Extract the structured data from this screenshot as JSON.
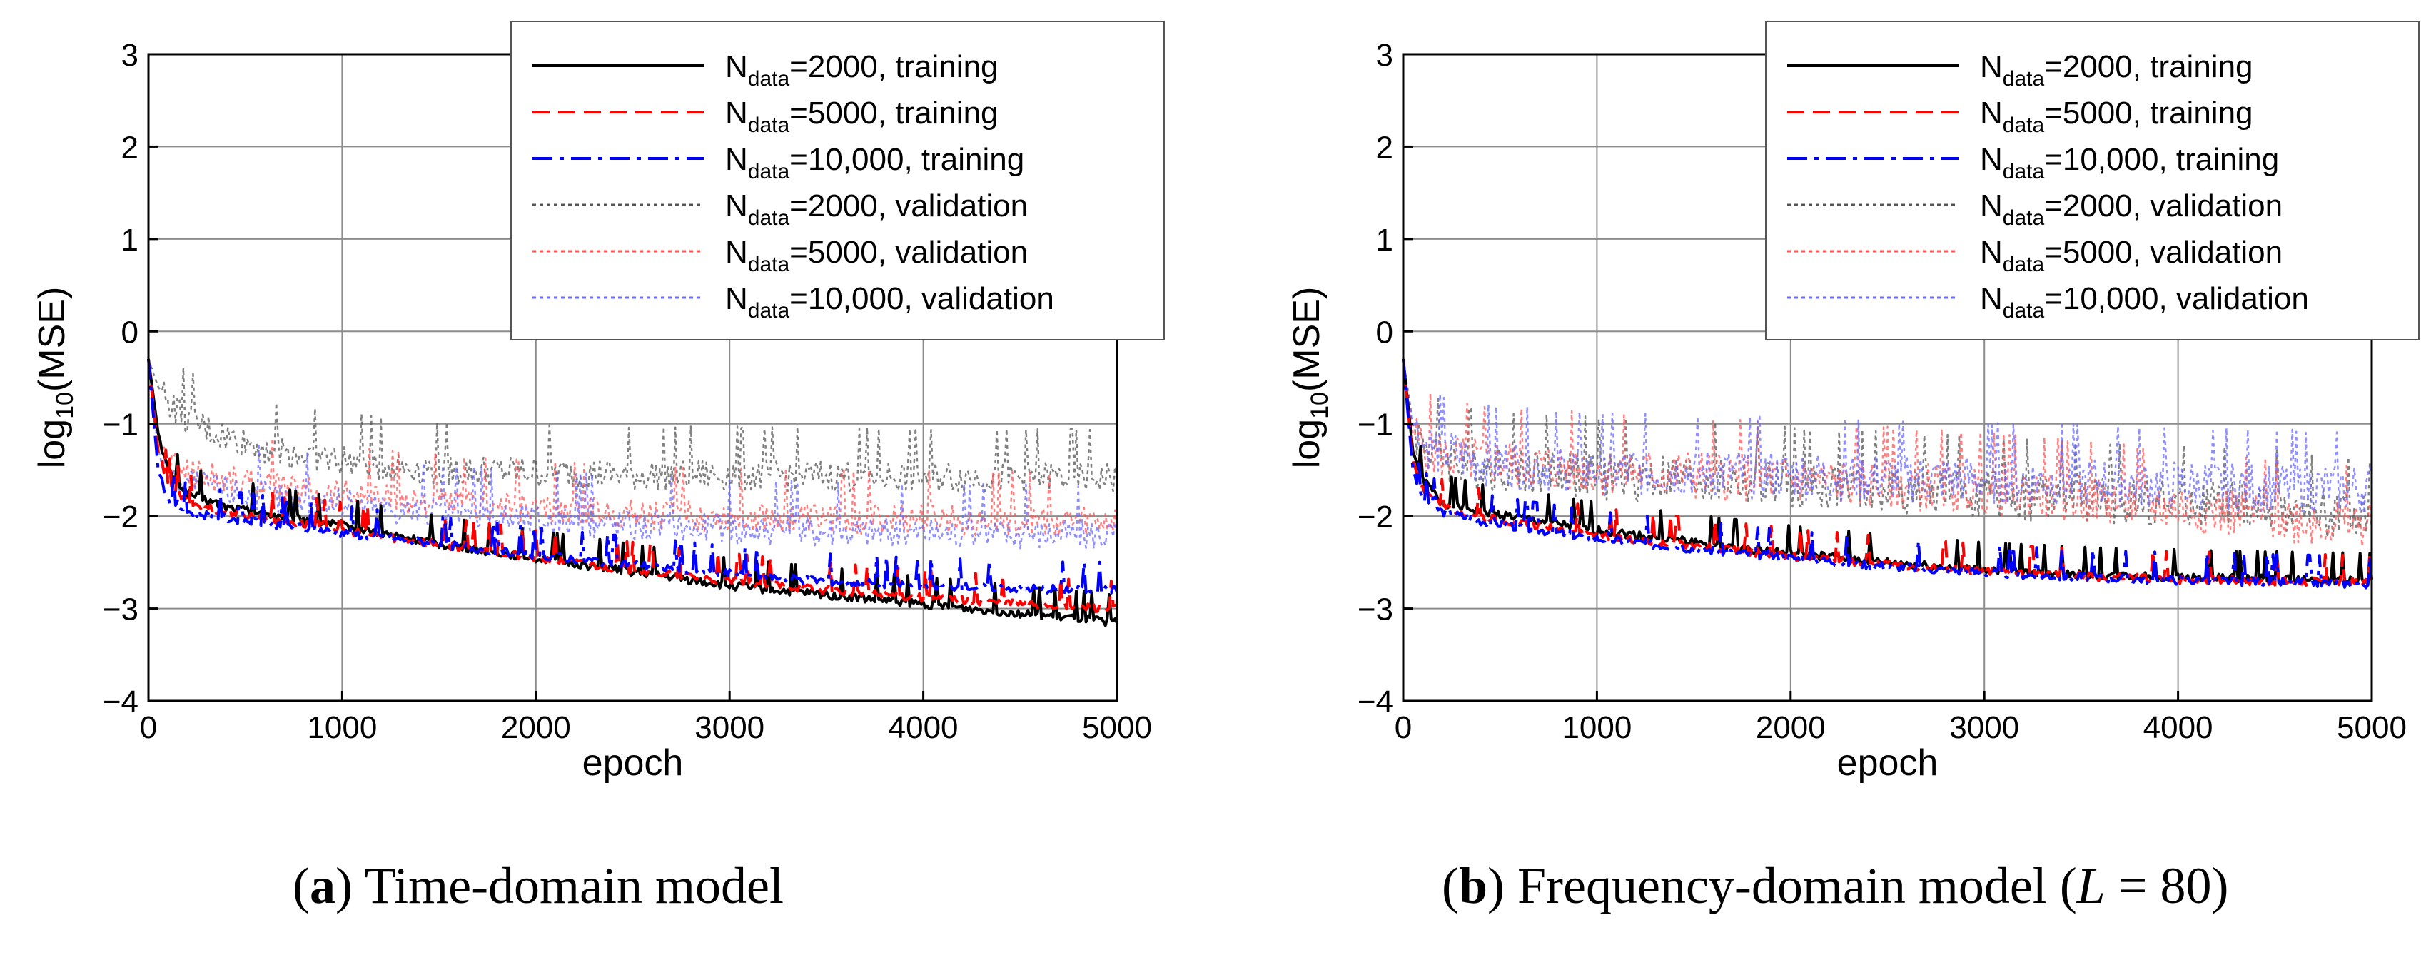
{
  "chart_data": [
    {
      "type": "line",
      "panel": "a",
      "caption": {
        "letter": "a",
        "text": " Time-domain model"
      },
      "xlabel": "epoch",
      "ylabel": {
        "prefix": "log",
        "sub": "10",
        "suffix": "(MSE)"
      },
      "xlim": [
        0,
        5000
      ],
      "ylim": [
        -4,
        3
      ],
      "xticks": [
        0,
        1000,
        2000,
        3000,
        4000,
        5000
      ],
      "yticks": [
        -4,
        -3,
        -2,
        -1,
        0,
        1,
        2,
        3
      ],
      "ytick_labels": [
        "−4",
        "−3",
        "−2",
        "−1",
        "0",
        "1",
        "2",
        "3"
      ],
      "grid": true,
      "legend_position": "top-right",
      "series": [
        {
          "name": "Ndata=2000, training",
          "n": "2000",
          "set": "training",
          "color": "#000000",
          "style": "solid",
          "x": [
            0,
            50,
            100,
            200,
            400,
            700,
            1000,
            1500,
            2000,
            2500,
            3000,
            3500,
            4000,
            4500,
            5000
          ],
          "y": [
            -0.3,
            -1.1,
            -1.5,
            -1.75,
            -1.9,
            -2.0,
            -2.1,
            -2.3,
            -2.45,
            -2.6,
            -2.75,
            -2.85,
            -2.95,
            -3.05,
            -3.15
          ]
        },
        {
          "name": "Ndata=5000, training",
          "n": "5000",
          "set": "training",
          "color": "#ff0000",
          "style": "dashed",
          "x": [
            0,
            50,
            100,
            200,
            400,
            700,
            1000,
            1500,
            2000,
            2500,
            3000,
            3500,
            4000,
            4500,
            5000
          ],
          "y": [
            -0.3,
            -1.3,
            -1.65,
            -1.85,
            -1.95,
            -2.05,
            -2.15,
            -2.3,
            -2.45,
            -2.58,
            -2.7,
            -2.8,
            -2.88,
            -2.95,
            -3.0
          ]
        },
        {
          "name": "Ndata=10,000, training",
          "n": "10,000",
          "set": "training",
          "color": "#0000ff",
          "style": "dashdot",
          "x": [
            0,
            50,
            100,
            200,
            400,
            700,
            1000,
            1500,
            2000,
            2500,
            3000,
            3500,
            4000,
            4500,
            5000
          ],
          "y": [
            -0.3,
            -1.5,
            -1.8,
            -1.95,
            -2.02,
            -2.1,
            -2.18,
            -2.3,
            -2.42,
            -2.52,
            -2.62,
            -2.7,
            -2.75,
            -2.78,
            -2.8
          ]
        },
        {
          "name": "Ndata=2000, validation",
          "n": "2000",
          "set": "validation",
          "color": "#555555",
          "style": "dotted",
          "x": [
            0,
            50,
            100,
            200,
            400,
            700,
            1000,
            1500,
            2000,
            2500,
            3000,
            3500,
            4000,
            4500,
            5000
          ],
          "y": [
            -0.3,
            -0.6,
            -0.75,
            -0.95,
            -1.15,
            -1.3,
            -1.4,
            -1.5,
            -1.52,
            -1.55,
            -1.55,
            -1.56,
            -1.57,
            -1.57,
            -1.58
          ]
        },
        {
          "name": "Ndata=5000, validation",
          "n": "5000",
          "set": "validation",
          "color": "#ff5555",
          "style": "dotted",
          "x": [
            0,
            50,
            100,
            200,
            400,
            700,
            1000,
            1500,
            2000,
            2500,
            3000,
            3500,
            4000,
            4500,
            5000
          ],
          "y": [
            -0.3,
            -1.2,
            -1.4,
            -1.5,
            -1.6,
            -1.7,
            -1.75,
            -1.85,
            -1.92,
            -1.97,
            -2.0,
            -2.02,
            -2.03,
            -2.04,
            -2.05
          ]
        },
        {
          "name": "Ndata=10,000, validation",
          "n": "10,000",
          "set": "validation",
          "color": "#6a6aff",
          "style": "dotted",
          "x": [
            0,
            50,
            100,
            200,
            400,
            700,
            1000,
            1500,
            2000,
            2500,
            3000,
            3500,
            4000,
            4500,
            5000
          ],
          "y": [
            -0.3,
            -1.3,
            -1.5,
            -1.6,
            -1.7,
            -1.8,
            -1.85,
            -1.95,
            -2.02,
            -2.08,
            -2.12,
            -2.15,
            -2.17,
            -2.18,
            -2.18
          ]
        }
      ]
    },
    {
      "type": "line",
      "panel": "b",
      "caption": {
        "letter": "b",
        "text": " Frequency-domain model (",
        "italic": "L",
        "eq": " = 80)"
      },
      "xlabel": "epoch",
      "ylabel": {
        "prefix": "log",
        "sub": "10",
        "suffix": "(MSE)"
      },
      "xlim": [
        0,
        5000
      ],
      "ylim": [
        -4,
        3
      ],
      "xticks": [
        0,
        1000,
        2000,
        3000,
        4000,
        5000
      ],
      "yticks": [
        -4,
        -3,
        -2,
        -1,
        0,
        1,
        2,
        3
      ],
      "ytick_labels": [
        "−4",
        "−3",
        "−2",
        "−1",
        "0",
        "1",
        "2",
        "3"
      ],
      "grid": true,
      "legend_position": "top-right",
      "series": [
        {
          "name": "Ndata=2000, training",
          "n": "2000",
          "set": "training",
          "color": "#000000",
          "style": "solid",
          "x": [
            0,
            50,
            100,
            200,
            400,
            700,
            1000,
            1500,
            2000,
            2500,
            3000,
            3500,
            4000,
            4500,
            5000
          ],
          "y": [
            -0.3,
            -1.3,
            -1.6,
            -1.85,
            -1.95,
            -2.05,
            -2.15,
            -2.28,
            -2.4,
            -2.5,
            -2.58,
            -2.63,
            -2.66,
            -2.68,
            -2.7
          ]
        },
        {
          "name": "Ndata=5000, training",
          "n": "5000",
          "set": "training",
          "color": "#ff0000",
          "style": "dashed",
          "x": [
            0,
            50,
            100,
            200,
            400,
            700,
            1000,
            1500,
            2000,
            2500,
            3000,
            3500,
            4000,
            4500,
            5000
          ],
          "y": [
            -0.3,
            -1.4,
            -1.7,
            -1.9,
            -2.0,
            -2.1,
            -2.2,
            -2.32,
            -2.43,
            -2.52,
            -2.6,
            -2.65,
            -2.68,
            -2.7,
            -2.72
          ]
        },
        {
          "name": "Ndata=10,000, training",
          "n": "10,000",
          "set": "training",
          "color": "#0000ff",
          "style": "dashdot",
          "x": [
            0,
            50,
            100,
            200,
            400,
            700,
            1000,
            1500,
            2000,
            2500,
            3000,
            3500,
            4000,
            4500,
            5000
          ],
          "y": [
            -0.3,
            -1.5,
            -1.8,
            -1.95,
            -2.05,
            -2.15,
            -2.24,
            -2.35,
            -2.45,
            -2.54,
            -2.61,
            -2.66,
            -2.69,
            -2.71,
            -2.73
          ]
        },
        {
          "name": "Ndata=2000, validation",
          "n": "2000",
          "set": "validation",
          "color": "#555555",
          "style": "dotted",
          "x": [
            0,
            50,
            100,
            200,
            400,
            700,
            1000,
            1500,
            2000,
            2500,
            3000,
            3500,
            4000,
            4500,
            5000
          ],
          "y": [
            -0.3,
            -1.0,
            -1.2,
            -1.35,
            -1.45,
            -1.5,
            -1.55,
            -1.6,
            -1.65,
            -1.7,
            -1.75,
            -1.8,
            -1.85,
            -1.9,
            -2.0
          ]
        },
        {
          "name": "Ndata=5000, validation",
          "n": "5000",
          "set": "validation",
          "color": "#ff5555",
          "style": "dotted",
          "x": [
            0,
            50,
            100,
            200,
            400,
            700,
            1000,
            1500,
            2000,
            2500,
            3000,
            3500,
            4000,
            4500,
            5000
          ],
          "y": [
            -0.3,
            -1.1,
            -1.25,
            -1.35,
            -1.4,
            -1.45,
            -1.5,
            -1.55,
            -1.6,
            -1.65,
            -1.7,
            -1.8,
            -1.9,
            -2.0,
            -2.1
          ]
        },
        {
          "name": "Ndata=10,000, validation",
          "n": "10,000",
          "set": "validation",
          "color": "#6a6aff",
          "style": "dotted",
          "x": [
            0,
            50,
            100,
            200,
            400,
            700,
            1000,
            1500,
            2000,
            2500,
            3000,
            3500,
            4000,
            4500,
            5000
          ],
          "y": [
            -0.3,
            -1.0,
            -1.2,
            -1.3,
            -1.4,
            -1.45,
            -1.5,
            -1.52,
            -1.55,
            -1.58,
            -1.6,
            -1.62,
            -1.65,
            -1.68,
            -1.7
          ]
        }
      ]
    }
  ]
}
